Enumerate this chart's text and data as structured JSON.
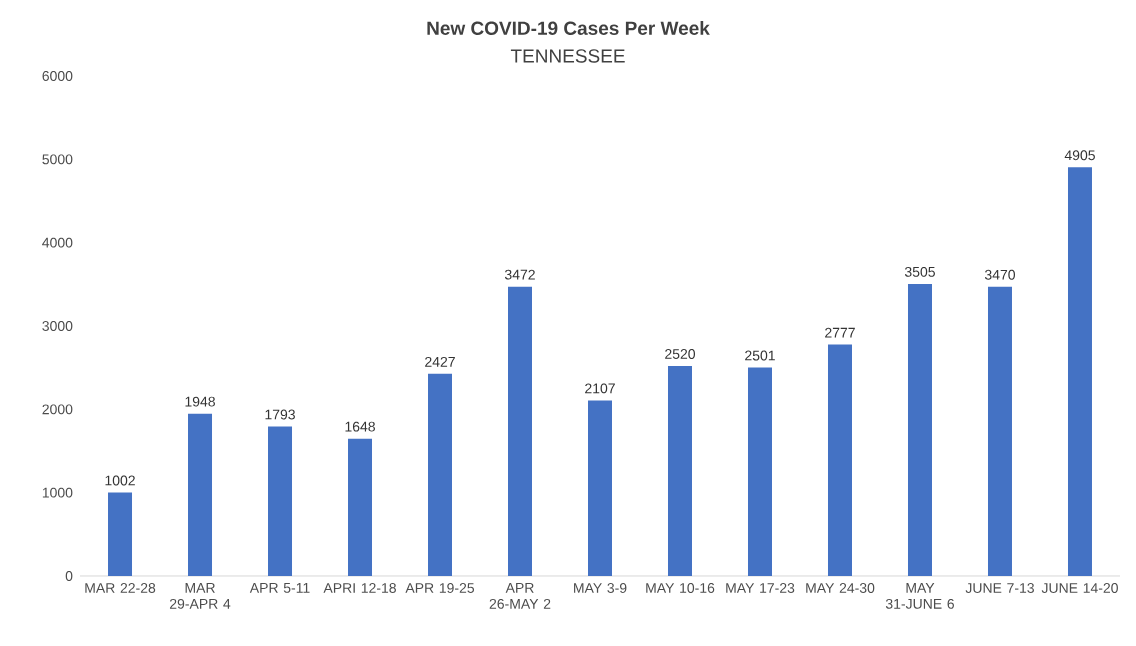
{
  "chart_data": {
    "type": "bar",
    "title": "New COVID-19 Cases Per Week",
    "subtitle": "TENNESSEE",
    "categories": [
      "MAR 22-28",
      "MAR 29-APR 4",
      "APR 5-11",
      "APRI 12-18",
      "APR 19-25",
      "APR 26-MAY 2",
      "MAY 3-9",
      "MAY 10-16",
      "MAY 17-23",
      "MAY 24-30",
      "MAY 31-JUNE 6",
      "JUNE 7-13",
      "JUNE 14-20"
    ],
    "values": [
      1002,
      1948,
      1793,
      1648,
      2427,
      3472,
      2107,
      2520,
      2501,
      2777,
      3505,
      3470,
      4905
    ],
    "color": "#4472c4",
    "ylim": [
      0,
      6000
    ],
    "yticks": [
      0,
      1000,
      2000,
      3000,
      4000,
      5000,
      6000
    ],
    "data_labels": true
  }
}
